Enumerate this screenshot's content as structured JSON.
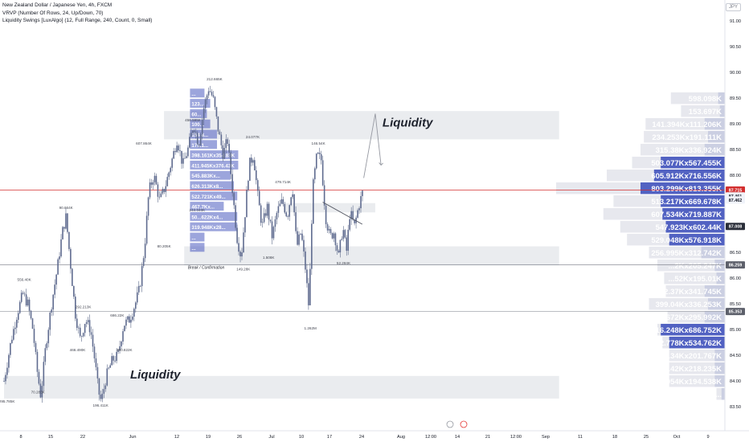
{
  "header": {
    "title": "New Zealand Dollar / Japanese Yen, 4h, FXCM",
    "indicator_1": "VRVP (Number Of Rows, 24, Up/Down, 70)",
    "indicator_2": "Liquidity Swings [LuxAlgo] (12, Full Range, 240, Count, 0, Small)",
    "currency": "JPY"
  },
  "chart_data": {
    "type": "candlestick",
    "symbol": "NZDJPY",
    "timeframe": "4h",
    "y_axis_ticks": [
      83.5,
      84.0,
      84.5,
      85.0,
      85.5,
      86.0,
      86.5,
      87.0,
      87.5,
      88.0,
      88.5,
      89.0,
      89.5,
      90.0,
      90.5,
      91.0
    ],
    "ylim": [
      83.3,
      91.3
    ],
    "x_axis_labels": [
      "8",
      "15",
      "22",
      "Jun",
      "12",
      "19",
      "26",
      "Jul",
      "10",
      "17",
      "24",
      "Aug",
      "12:00",
      "14",
      "21",
      "12:00",
      "Sep",
      "11",
      "18",
      "25",
      "Oct",
      "9"
    ],
    "price_labels": {
      "current": "87.715",
      "pre_1": "87.461",
      "pre_2": "87.462",
      "level_1": "87.008",
      "level_2": "86.259",
      "level_3": "85.353"
    },
    "close_path": [
      [
        0.0,
        84.0
      ],
      [
        1.0,
        84.8
      ],
      [
        1.8,
        85.3
      ],
      [
        2.6,
        85.7
      ],
      [
        3.3,
        85.5
      ],
      [
        4.0,
        85.0
      ],
      [
        4.6,
        84.2
      ],
      [
        5.1,
        83.7
      ],
      [
        5.8,
        84.7
      ],
      [
        6.6,
        85.5
      ],
      [
        7.4,
        86.2
      ],
      [
        8.1,
        86.9
      ],
      [
        8.6,
        87.2
      ],
      [
        9.2,
        86.3
      ],
      [
        9.9,
        85.3
      ],
      [
        10.6,
        84.8
      ],
      [
        11.3,
        85.2
      ],
      [
        12.0,
        85.0
      ],
      [
        12.6,
        84.4
      ],
      [
        13.1,
        83.8
      ],
      [
        13.5,
        83.6
      ],
      [
        14.2,
        84.1
      ],
      [
        15.0,
        84.4
      ],
      [
        15.8,
        84.5
      ],
      [
        16.6,
        85.1
      ],
      [
        17.4,
        85.2
      ],
      [
        18.2,
        85.5
      ],
      [
        18.8,
        85.8
      ],
      [
        19.5,
        86.6
      ],
      [
        20.1,
        87.7
      ],
      [
        20.8,
        88.0
      ],
      [
        21.6,
        87.5
      ],
      [
        22.4,
        87.8
      ],
      [
        23.3,
        88.3
      ],
      [
        24.0,
        88.7
      ],
      [
        24.8,
        88.2
      ],
      [
        25.5,
        88.5
      ],
      [
        26.3,
        89.0
      ],
      [
        27.0,
        88.6
      ],
      [
        27.7,
        89.3
      ],
      [
        28.4,
        89.7
      ],
      [
        29.0,
        89.5
      ],
      [
        29.7,
        88.9
      ],
      [
        30.4,
        88.4
      ],
      [
        31.0,
        88.7
      ],
      [
        31.7,
        87.7
      ],
      [
        32.3,
        86.8
      ],
      [
        32.9,
        86.4
      ],
      [
        33.4,
        87.2
      ],
      [
        34.0,
        88.2
      ],
      [
        34.6,
        88.4
      ],
      [
        35.2,
        87.6
      ],
      [
        35.8,
        87.0
      ],
      [
        36.5,
        87.4
      ],
      [
        37.2,
        86.8
      ],
      [
        37.9,
        87.3
      ],
      [
        38.6,
        87.5
      ],
      [
        39.3,
        87.2
      ],
      [
        40.0,
        87.8
      ],
      [
        40.6,
        86.6
      ],
      [
        41.2,
        86.9
      ],
      [
        41.8,
        86.2
      ],
      [
        42.3,
        85.4
      ],
      [
        42.8,
        87.7
      ],
      [
        43.4,
        88.4
      ],
      [
        44.0,
        88.3
      ],
      [
        44.6,
        87.2
      ],
      [
        45.2,
        86.8
      ],
      [
        45.8,
        86.9
      ],
      [
        46.4,
        86.4
      ],
      [
        47.0,
        87.0
      ],
      [
        47.5,
        86.5
      ],
      [
        48.0,
        87.3
      ],
      [
        48.6,
        87.0
      ],
      [
        49.2,
        87.4
      ],
      [
        49.8,
        87.7
      ]
    ],
    "swing_labels": [
      {
        "text": "212.665K",
        "x": 29.2,
        "y": 89.85
      },
      {
        "text": "456.595K",
        "x": 26.2,
        "y": 89.05
      },
      {
        "text": "24.077K",
        "x": 34.5,
        "y": 88.72
      },
      {
        "text": "146.54K",
        "x": 43.6,
        "y": 88.6
      },
      {
        "text": "479.714K",
        "x": 38.7,
        "y": 87.85
      },
      {
        "text": "90.664K",
        "x": 8.6,
        "y": 87.35
      },
      {
        "text": "607.864K",
        "x": 19.4,
        "y": 88.6
      },
      {
        "text": "244.040K",
        "x": 26.8,
        "y": 87.3
      },
      {
        "text": "556.40K",
        "x": 2.8,
        "y": 85.95
      },
      {
        "text": "292.213K",
        "x": 11.0,
        "y": 85.42
      },
      {
        "text": "686.22K",
        "x": 15.7,
        "y": 85.25
      },
      {
        "text": "466.490K",
        "x": 10.2,
        "y": 84.58
      },
      {
        "text": "390.822K",
        "x": 16.7,
        "y": 84.58
      },
      {
        "text": "80.205K",
        "x": 22.2,
        "y": 86.6
      },
      {
        "text": "149.28K",
        "x": 33.2,
        "y": 86.15
      },
      {
        "text": "1.508K",
        "x": 36.7,
        "y": 86.38
      },
      {
        "text": "52.284K",
        "x": 47.1,
        "y": 86.27
      },
      {
        "text": "1.262M",
        "x": 42.5,
        "y": 85.0
      },
      {
        "text": "70.283K",
        "x": 4.7,
        "y": 83.76
      },
      {
        "text": "196.411K",
        "x": 13.4,
        "y": 83.5
      },
      {
        "text": "295.785K",
        "x": 0.4,
        "y": 83.58
      }
    ],
    "annotations": [
      {
        "text": "Liquidity",
        "x": 52.5,
        "y": 88.95
      },
      {
        "text": "Liquidity",
        "x": 17.5,
        "y": 84.05
      },
      {
        "text": "Break / Confirmation",
        "x": 25.5,
        "y": 86.18
      }
    ],
    "liquidity_zones": [
      {
        "x0": 22.2,
        "x1": 77,
        "y0": 88.7,
        "y1": 89.25
      },
      {
        "x0": 0,
        "x1": 77,
        "y0": 83.66,
        "y1": 84.1
      },
      {
        "x0": 25.0,
        "x1": 77,
        "y0": 86.25,
        "y1": 86.62
      },
      {
        "x0": 38.8,
        "x1": 51.5,
        "y0": 87.28,
        "y1": 87.46
      }
    ],
    "horizontal_lines": [
      {
        "y": 87.715,
        "color": "#d32f2f"
      },
      {
        "y": 86.259,
        "color": "#787b86"
      },
      {
        "y": 85.353,
        "color": "#9598a1"
      }
    ],
    "projection_path": [
      [
        49.9,
        87.95
      ],
      [
        51.5,
        89.2
      ],
      [
        52.3,
        88.2
      ]
    ],
    "trendline": [
      [
        44.2,
        87.48
      ],
      [
        49.7,
        87.05
      ]
    ],
    "vrvp_right": [
      {
        "label": "598.098K",
        "y": 89.5,
        "up": 0.04,
        "down": 0.32
      },
      {
        "label": "153.697K",
        "y": 89.25,
        "up": 0.03,
        "down": 0.26
      },
      {
        "label": "141.394Kx111.206K",
        "y": 89.0,
        "up": 0.12,
        "down": 0.47
      },
      {
        "label": "234.253Kx191.111K",
        "y": 88.75,
        "up": 0.1,
        "down": 0.48
      },
      {
        "label": "315.38Kx336.924K",
        "y": 88.5,
        "up": 0.12,
        "down": 0.5
      },
      {
        "label": "503.077Kx567.455K",
        "y": 88.25,
        "up": 0.38,
        "down": 0.55
      },
      {
        "label": "605.912Kx716.556K",
        "y": 88.0,
        "up": 0.42,
        "down": 0.7
      },
      {
        "label": "803.299Kx813.355K",
        "y": 87.75,
        "up": 0.5,
        "down": 1.0
      },
      {
        "label": "513.217Kx669.678K",
        "y": 87.5,
        "up": 0.38,
        "down": 0.66
      },
      {
        "label": "607.534Kx719.887K",
        "y": 87.25,
        "up": 0.37,
        "down": 0.72
      },
      {
        "label": "547.923Kx602.44K",
        "y": 87.0,
        "up": 0.35,
        "down": 0.62
      },
      {
        "label": "529.048Kx576.918K",
        "y": 86.75,
        "up": 0.33,
        "down": 0.58
      },
      {
        "label": "256.995Kx312.742K",
        "y": 86.5,
        "up": 0.14,
        "down": 0.45
      },
      {
        "label": "...2Kx205.247K",
        "y": 86.25,
        "up": 0.06,
        "down": 0.4
      },
      {
        "label": "...52Kx195.01K",
        "y": 86.0,
        "up": 0.05,
        "down": 0.36
      },
      {
        "label": "282.37Kx341.745K",
        "y": 85.75,
        "up": 0.12,
        "down": 0.35
      },
      {
        "label": "399.04Kx336.253K",
        "y": 85.5,
        "up": 0.1,
        "down": 0.45
      },
      {
        "label": "375.672Kx295.992K",
        "y": 85.25,
        "up": 0.12,
        "down": 0.34
      },
      {
        "label": "716.248Kx686.752K",
        "y": 85.0,
        "up": 0.38,
        "down": 0.4
      },
      {
        "label": "632.778Kx534.762K",
        "y": 84.75,
        "up": 0.33,
        "down": 0.37
      },
      {
        "label": "...34Kx201.767K",
        "y": 84.5,
        "up": 0.06,
        "down": 0.33
      },
      {
        "label": "...42Kx218.235K",
        "y": 84.25,
        "up": 0.06,
        "down": 0.33
      },
      {
        "label": "217.954Kx194.538K",
        "y": 84.0,
        "up": 0.06,
        "down": 0.33
      },
      {
        "label": "...",
        "y": 83.75,
        "up": 0.02,
        "down": 0.05
      }
    ],
    "vrvp_left": [
      {
        "label": "...",
        "y": 89.6
      },
      {
        "label": "123...",
        "y": 89.4
      },
      {
        "label": "60...",
        "y": 89.2
      },
      {
        "label": "100...",
        "y": 89.0
      },
      {
        "label": "154.8...",
        "y": 88.8
      },
      {
        "label": "179.1...",
        "y": 88.6
      },
      {
        "label": "398.161Kx354.83K",
        "y": 88.4
      },
      {
        "label": "411.945Kx376.43K",
        "y": 88.2
      },
      {
        "label": "545.883Kx...",
        "y": 88.0
      },
      {
        "label": "626.313Kx8...",
        "y": 87.8
      },
      {
        "label": "522.721Kx49...",
        "y": 87.6
      },
      {
        "label": "467.7Kx...",
        "y": 87.4
      },
      {
        "label": "50...622Kx4...",
        "y": 87.2
      },
      {
        "label": "319.948Kx28...",
        "y": 87.0
      },
      {
        "label": "...",
        "y": 86.8
      },
      {
        "label": "...",
        "y": 86.6
      }
    ],
    "grid": false,
    "legend": "none"
  }
}
